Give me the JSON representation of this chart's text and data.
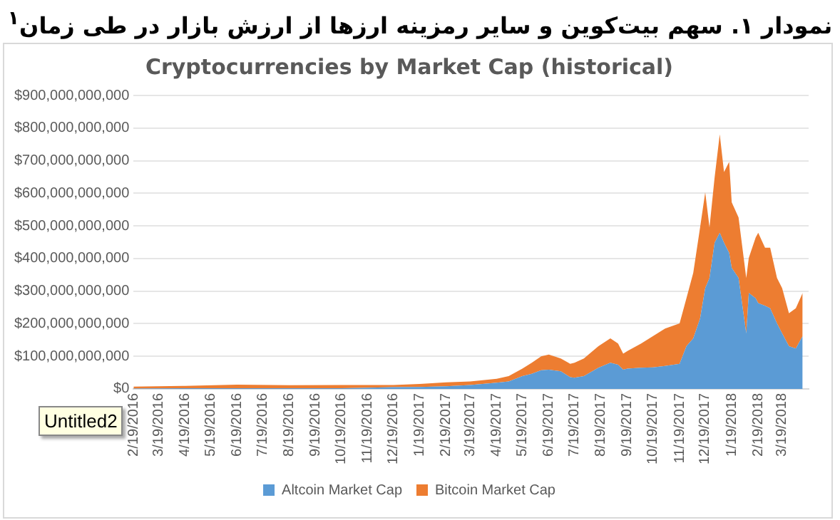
{
  "chart_data": {
    "type": "area",
    "title": "نمودار ۱. سهم بیت‌کوین و سایر رمزینه ارزها از ارزش بازار در طی زمان$^{۱}$",
    "subtitle": "Cryptocurrencies by Market Cap (historical)",
    "annotations": [
      "Untitled2"
    ],
    "stacked": true,
    "legend": "bottom",
    "grid": "y",
    "x": [
      "2016-02-19",
      "2016-04-19",
      "2016-06-19",
      "2016-08-19",
      "2016-10-19",
      "2016-12-19",
      "2017-01-19",
      "2017-02-19",
      "2017-03-19",
      "2017-04-19",
      "2017-05-03",
      "2017-05-19",
      "2017-05-30",
      "2017-06-10",
      "2017-06-19",
      "2017-07-03",
      "2017-07-14",
      "2017-07-19",
      "2017-07-30",
      "2017-08-16",
      "2017-08-30",
      "2017-09-08",
      "2017-09-14",
      "2017-09-19",
      "2017-10-05",
      "2017-10-19",
      "2017-11-02",
      "2017-11-19",
      "2017-11-27",
      "2017-12-05",
      "2017-12-13",
      "2017-12-19",
      "2017-12-24",
      "2017-12-30",
      "2018-01-05",
      "2018-01-10",
      "2018-01-16",
      "2018-01-19",
      "2018-01-27",
      "2018-02-05",
      "2018-02-08",
      "2018-02-16",
      "2018-02-19",
      "2018-02-27",
      "2018-03-05",
      "2018-03-13",
      "2018-03-19",
      "2018-03-27",
      "2018-04-04",
      "2018-04-12"
    ],
    "series": [
      {
        "name": "Altcoin Market Cap",
        "color": "#5b9bd5",
        "values": [
          1000000000,
          2000000000,
          2000000000,
          2000000000,
          2000000000,
          5000000000,
          6000000000,
          8000000000,
          12000000000,
          19000000000,
          23000000000,
          39000000000,
          46000000000,
          57000000000,
          59000000000,
          54000000000,
          36000000000,
          34000000000,
          39000000000,
          65000000000,
          80000000000,
          74000000000,
          59000000000,
          62000000000,
          65000000000,
          66000000000,
          70000000000,
          77000000000,
          131000000000,
          155000000000,
          216000000000,
          309000000000,
          340000000000,
          448000000000,
          479000000000,
          448000000000,
          417000000000,
          371000000000,
          340000000000,
          170000000000,
          294000000000,
          278000000000,
          263000000000,
          255000000000,
          247000000000,
          201000000000,
          170000000000,
          131000000000,
          124000000000,
          162000000000
        ]
      },
      {
        "name": "Bitcoin Market Cap",
        "color": "#ed7d31",
        "values": [
          6000000000,
          7000000000,
          11000000000,
          9000000000,
          10000000000,
          7000000000,
          9000000000,
          12000000000,
          11000000000,
          12000000000,
          16000000000,
          23000000000,
          34000000000,
          43000000000,
          46000000000,
          39000000000,
          41000000000,
          46000000000,
          54000000000,
          66000000000,
          75000000000,
          65000000000,
          49000000000,
          54000000000,
          74000000000,
          96000000000,
          115000000000,
          124000000000,
          147000000000,
          201000000000,
          279000000000,
          294000000000,
          155000000000,
          201000000000,
          302000000000,
          217000000000,
          279000000000,
          201000000000,
          186000000000,
          170000000000,
          108000000000,
          186000000000,
          216000000000,
          178000000000,
          186000000000,
          139000000000,
          139000000000,
          101000000000,
          123000000000,
          132000000000
        ]
      }
    ],
    "xlim": [
      "2016-02-19",
      "2018-04-19"
    ],
    "xticks": [
      {
        "value": "2016-02-19",
        "label": "2/19/2016"
      },
      {
        "value": "2016-03-19",
        "label": "3/19/2016"
      },
      {
        "value": "2016-04-19",
        "label": "4/19/2016"
      },
      {
        "value": "2016-05-19",
        "label": "5/19/2016"
      },
      {
        "value": "2016-06-19",
        "label": "6/19/2016"
      },
      {
        "value": "2016-07-19",
        "label": "7/19/2016"
      },
      {
        "value": "2016-08-19",
        "label": "8/19/2016"
      },
      {
        "value": "2016-09-19",
        "label": "9/19/2016"
      },
      {
        "value": "2016-10-19",
        "label": "10/19/2016"
      },
      {
        "value": "2016-11-19",
        "label": "11/19/2016"
      },
      {
        "value": "2016-12-19",
        "label": "12/19/2016"
      },
      {
        "value": "2017-01-19",
        "label": "1/19/2017"
      },
      {
        "value": "2017-02-19",
        "label": "2/19/2017"
      },
      {
        "value": "2017-03-19",
        "label": "3/19/2017"
      },
      {
        "value": "2017-04-19",
        "label": "4/19/2017"
      },
      {
        "value": "2017-05-19",
        "label": "5/19/2017"
      },
      {
        "value": "2017-06-19",
        "label": "6/19/2017"
      },
      {
        "value": "2017-07-19",
        "label": "7/19/2017"
      },
      {
        "value": "2017-08-19",
        "label": "8/19/2017"
      },
      {
        "value": "2017-09-19",
        "label": "9/19/2017"
      },
      {
        "value": "2017-10-19",
        "label": "10/19/2017"
      },
      {
        "value": "2017-11-19",
        "label": "11/19/2017"
      },
      {
        "value": "2017-12-19",
        "label": "12/19/2017"
      },
      {
        "value": "2018-01-19",
        "label": "1/19/2018"
      },
      {
        "value": "2018-02-19",
        "label": "2/19/2018"
      },
      {
        "value": "2018-03-19",
        "label": "3/19/2018"
      }
    ],
    "ylim": [
      0,
      900000000000
    ],
    "yticks": [
      {
        "value": 0,
        "label": "$0"
      },
      {
        "value": 100000000000,
        "label": "$100,000,000,000"
      },
      {
        "value": 200000000000,
        "label": "$200,000,000,000"
      },
      {
        "value": 300000000000,
        "label": "$300,000,000,000"
      },
      {
        "value": 400000000000,
        "label": "$400,000,000,000"
      },
      {
        "value": 500000000000,
        "label": "$500,000,000,000"
      },
      {
        "value": 600000000000,
        "label": "$600,000,000,000"
      },
      {
        "value": 700000000000,
        "label": "$700,000,000,000"
      },
      {
        "value": 800000000000,
        "label": "$800,000,000,000"
      },
      {
        "value": 900000000000,
        "label": "$900,000,000,000"
      }
    ]
  }
}
